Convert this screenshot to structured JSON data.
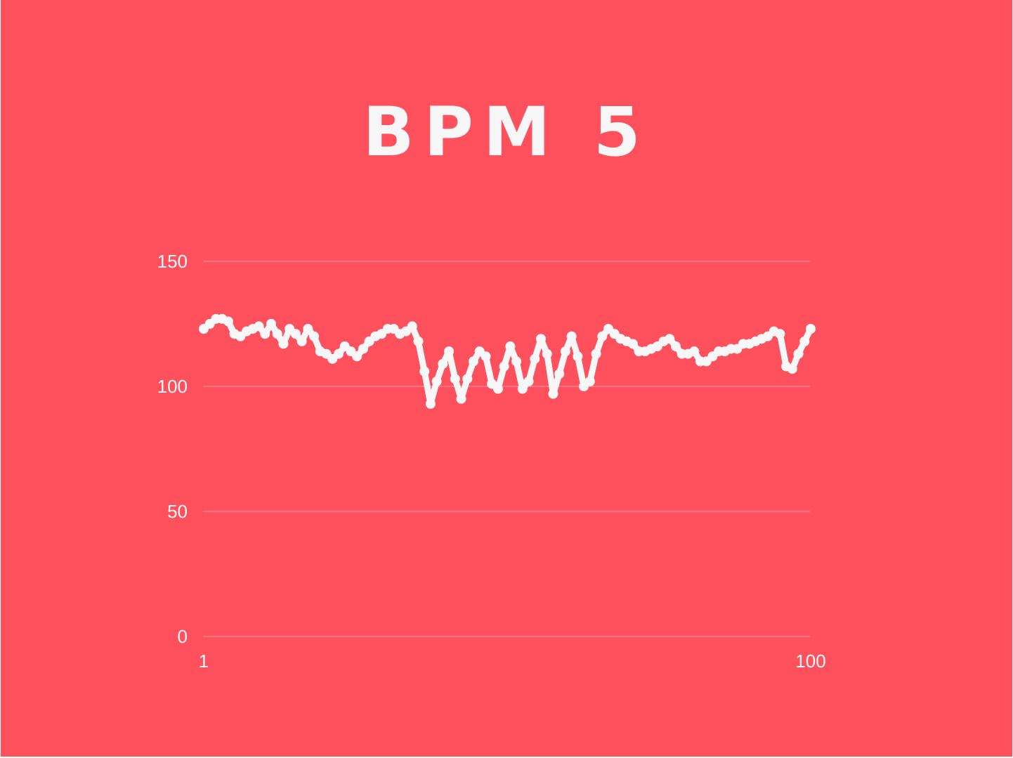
{
  "colors": {
    "background": "#ff505e",
    "foreground": "#f7f7f7",
    "grid": "#ff9ea5"
  },
  "chart_data": {
    "type": "line",
    "title": "BPM 5",
    "xlabel": "",
    "ylabel": "",
    "x_tick_labels": [
      "1",
      "100"
    ],
    "y_tick_labels": [
      "0",
      "50",
      "100",
      "150"
    ],
    "xlim": [
      1,
      100
    ],
    "ylim": [
      0,
      150
    ],
    "grid": true,
    "x": [
      1,
      2,
      3,
      4,
      5,
      6,
      7,
      8,
      9,
      10,
      11,
      12,
      13,
      14,
      15,
      16,
      17,
      18,
      19,
      20,
      21,
      22,
      23,
      24,
      25,
      26,
      27,
      28,
      29,
      30,
      31,
      32,
      33,
      34,
      35,
      36,
      37,
      38,
      39,
      40,
      41,
      42,
      43,
      44,
      45,
      46,
      47,
      48,
      49,
      50,
      51,
      52,
      53,
      54,
      55,
      56,
      57,
      58,
      59,
      60,
      61,
      62,
      63,
      64,
      65,
      66,
      67,
      68,
      69,
      70,
      71,
      72,
      73,
      74,
      75,
      76,
      77,
      78,
      79,
      80,
      81,
      82,
      83,
      84,
      85,
      86,
      87,
      88,
      89,
      90,
      91,
      92,
      93,
      94,
      95,
      96,
      97,
      98,
      99,
      100
    ],
    "series": [
      {
        "values": [
          123,
          125,
          127,
          127,
          126,
          121,
          120,
          122,
          123,
          124,
          121,
          125,
          121,
          117,
          123,
          121,
          118,
          123,
          120,
          114,
          113,
          111,
          113,
          116,
          114,
          112,
          115,
          118,
          120,
          121,
          123,
          123,
          121,
          122,
          124,
          118,
          106,
          93,
          102,
          109,
          114,
          103,
          95,
          103,
          110,
          114,
          112,
          101,
          99,
          108,
          116,
          110,
          99,
          102,
          111,
          119,
          113,
          97,
          105,
          114,
          120,
          112,
          100,
          102,
          113,
          120,
          123,
          121,
          119,
          118,
          117,
          114,
          114,
          115,
          116,
          118,
          119,
          116,
          113,
          113,
          114,
          110,
          110,
          112,
          114,
          114,
          115,
          115,
          117,
          117,
          118,
          119,
          120,
          122,
          121,
          108,
          107,
          113,
          118,
          123
        ]
      }
    ]
  }
}
